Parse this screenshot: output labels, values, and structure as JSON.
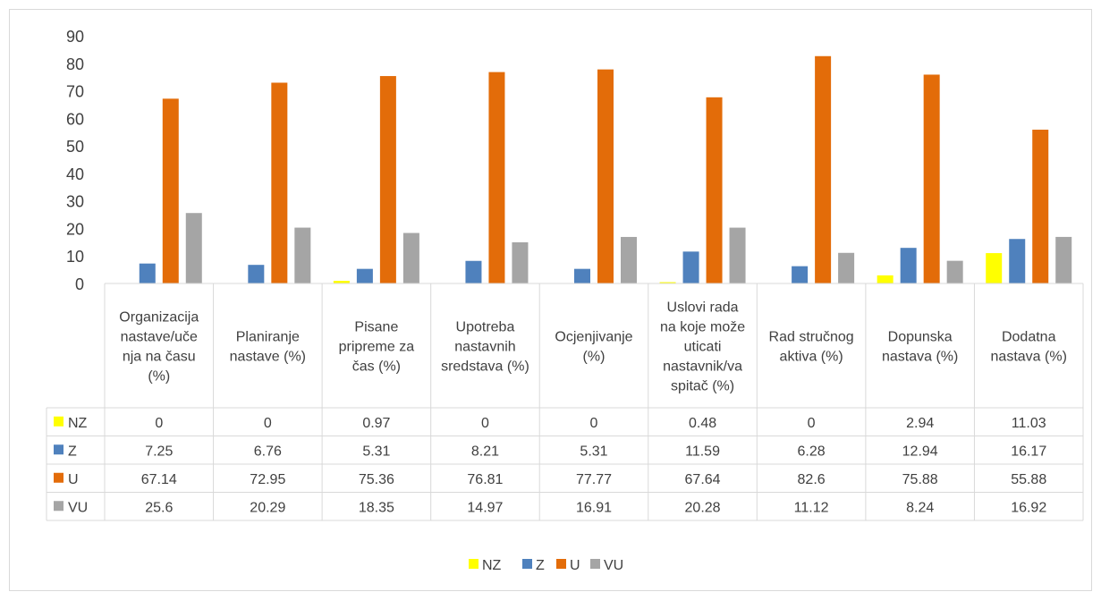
{
  "chart_data": {
    "type": "bar",
    "categories": [
      [
        "Organizacija",
        "nastave/uče",
        "nja na času",
        "(%)"
      ],
      [
        "Planiranje",
        "nastave (%)"
      ],
      [
        "Pisane",
        "pripreme za",
        "čas (%)"
      ],
      [
        "Upotreba",
        "nastavnih",
        "sredstava (%)"
      ],
      [
        "Ocjenjivanje",
        "(%)"
      ],
      [
        "Uslovi rada",
        "na koje može",
        "uticati",
        "nastavnik/va",
        "spitač (%)"
      ],
      [
        "Rad stručnog",
        "aktiva (%)"
      ],
      [
        "Dopunska",
        "nastava (%)"
      ],
      [
        "Dodatna",
        "nastava (%)"
      ]
    ],
    "series": [
      {
        "name": "NZ",
        "color": "#ffff00",
        "values": [
          0,
          0,
          0.97,
          0,
          0,
          0.48,
          0,
          2.94,
          11.03
        ],
        "labels": [
          "0",
          "0",
          "0.97",
          "0",
          "0",
          "0.48",
          "0",
          "2.94",
          "11.03"
        ]
      },
      {
        "name": "Z",
        "color": "#4f81bd",
        "values": [
          7.25,
          6.76,
          5.31,
          8.21,
          5.31,
          11.59,
          6.28,
          12.94,
          16.17
        ],
        "labels": [
          "7.25",
          "6.76",
          "5.31",
          "8.21",
          "5.31",
          "11.59",
          "6.28",
          "12.94",
          "16.17"
        ]
      },
      {
        "name": "U",
        "color": "#e36c09",
        "values": [
          67.14,
          72.95,
          75.36,
          76.81,
          77.77,
          67.64,
          82.6,
          75.88,
          55.88
        ],
        "labels": [
          "67.14",
          "72.95",
          "75.36",
          "76.81",
          "77.77",
          "67.64",
          "82.6",
          "75.88",
          "55.88"
        ]
      },
      {
        "name": "VU",
        "color": "#a5a5a5",
        "values": [
          25.6,
          20.29,
          18.35,
          14.97,
          16.91,
          20.28,
          11.12,
          8.24,
          16.92
        ],
        "labels": [
          "25.6",
          "20.29",
          "18.35",
          "14.97",
          "16.91",
          "20.28",
          "11.12",
          "8.24",
          "16.92"
        ]
      }
    ],
    "ylim": [
      0,
      90
    ],
    "yticks": [
      "0",
      "10",
      "20",
      "30",
      "40",
      "50",
      "60",
      "70",
      "80",
      "90"
    ],
    "grid": false,
    "legend_position": "bottom",
    "data_table": true
  }
}
